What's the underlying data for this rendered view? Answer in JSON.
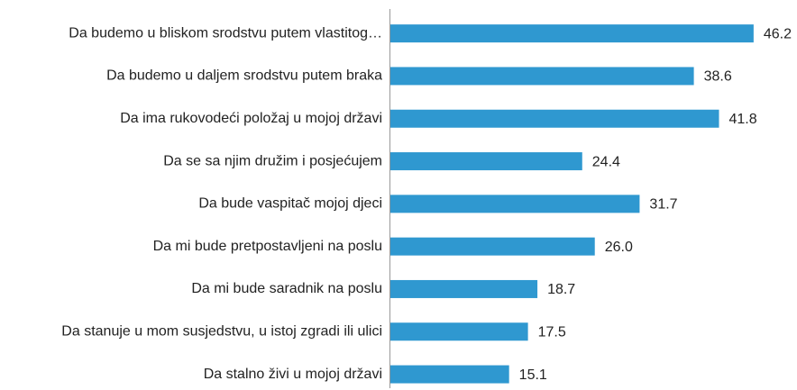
{
  "chart_data": {
    "type": "bar",
    "orientation": "horizontal",
    "color": "#2f98d0",
    "categories": [
      "Da budemo u bliskom srodstvu putem vlastitog…",
      "Da budemo u daljem srodstvu putem braka",
      "Da ima rukovodeći položaj u mojoj državi",
      "Da se sa njim družim i posjećujem",
      "Da bude vaspitač mojoj djeci",
      "Da mi bude pretpostavljeni na poslu",
      "Da mi bude saradnik na poslu",
      "Da stanuje u mom susjedstvu, u istoj zgradi ili ulici",
      "Da stalno živi u mojoj državi"
    ],
    "values": [
      46.2,
      38.6,
      41.8,
      24.4,
      31.7,
      26.0,
      18.7,
      17.5,
      15.1
    ],
    "value_labels": [
      "46.2",
      "38.6",
      "41.8",
      "24.4",
      "31.7",
      "26.0",
      "18.7",
      "17.5",
      "15.1"
    ]
  }
}
